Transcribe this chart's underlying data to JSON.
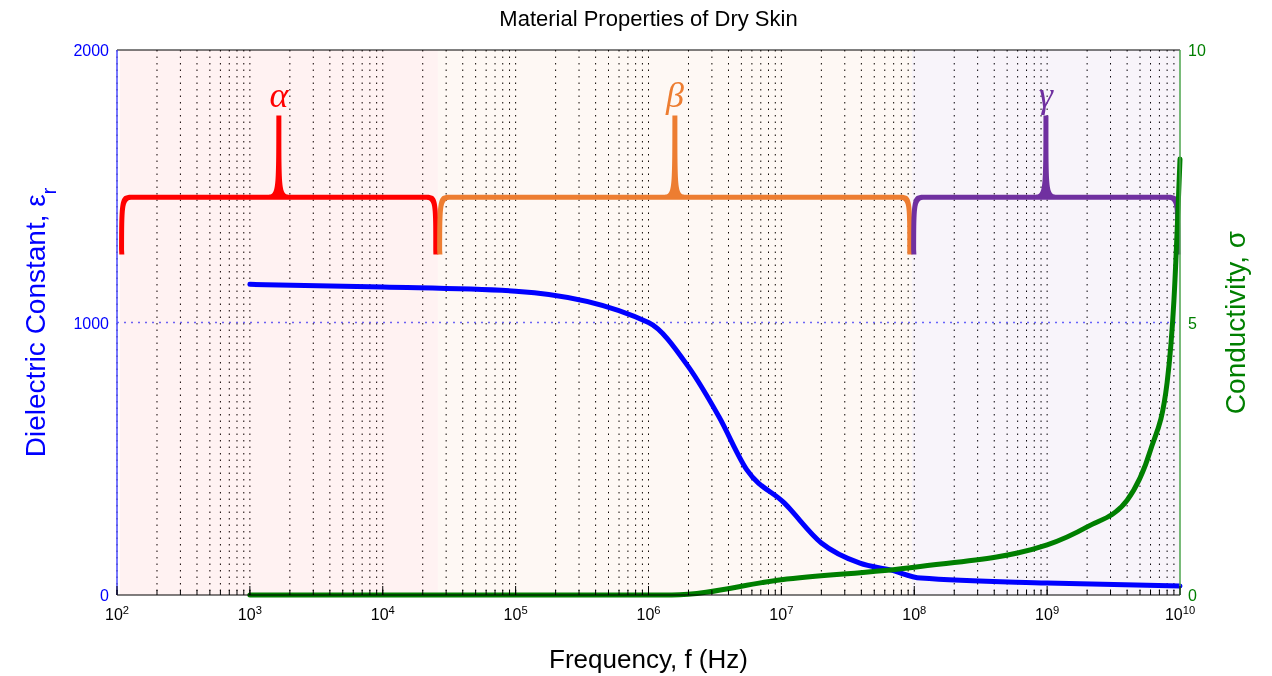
{
  "chart_data": {
    "type": "line",
    "title": "Material Properties of Dry Skin",
    "xlabel": "Frequency, f (Hz)",
    "ylabel": "Dielectric Constant, ε$_{r}$",
    "y2label": "Conductivity, σ",
    "log": "x",
    "grid": "x",
    "ref_lines": [
      {
        "axis": "y",
        "value": 1000,
        "color": "#6666ff",
        "line_style": "dotted"
      }
    ],
    "line_style": "solid",
    "marker": "none",
    "xlim": [
      100,
      10000000000
    ],
    "xticks": [
      {
        "value": 100,
        "label": "10$^{2}$"
      },
      {
        "value": 1000,
        "label": "10$^{3}$"
      },
      {
        "value": 10000,
        "label": "10$^{4}$"
      },
      {
        "value": 100000,
        "label": "10$^{5}$"
      },
      {
        "value": 1000000,
        "label": "10$^{6}$"
      },
      {
        "value": 10000000,
        "label": "10$^{7}$"
      },
      {
        "value": 100000000,
        "label": "10$^{8}$"
      },
      {
        "value": 1000000000,
        "label": "10$^{9}$"
      },
      {
        "value": 10000000000,
        "label": "10$^{10}$"
      }
    ],
    "ylim": [
      0,
      2000
    ],
    "yticks": [
      0,
      1000,
      2000
    ],
    "y2lim": [
      0,
      10
    ],
    "y2ticks": [
      0,
      5,
      10
    ],
    "bands": [
      {
        "axis": "x",
        "from": 105,
        "to": 26000,
        "label": "α",
        "color": "#ff0000"
      },
      {
        "axis": "x",
        "from": 26000,
        "to": 96000000,
        "label": "β",
        "color": "#ed7d31"
      },
      {
        "axis": "x",
        "from": 96000000,
        "to": 10000000000,
        "label": "γ",
        "color": "#7030a0"
      }
    ],
    "series": [
      {
        "color": "#0000ff",
        "x": [
          1000,
          10000,
          100000,
          1000000,
          2000000,
          3400000,
          5500000,
          10500000,
          20000000,
          39000000,
          66000000,
          112000000,
          1000000000,
          10000000000
        ],
        "values": [
          1140,
          1130,
          1115,
          1000,
          837,
          653,
          459,
          338,
          191,
          117,
          92,
          62,
          44,
          33
        ]
      },
      {
        "color": "#007f00",
        "axis": "y2",
        "x": [
          1000,
          100000,
          1500000,
          10000000,
          100000000,
          1000000000,
          2000000000,
          4000000000,
          6000000000,
          8000000000,
          9000000000,
          10000000000
        ],
        "values": [
          0,
          0,
          0,
          0.28,
          0.51,
          0.92,
          1.25,
          1.74,
          2.66,
          3.9,
          5.4,
          8.0
        ]
      }
    ]
  }
}
